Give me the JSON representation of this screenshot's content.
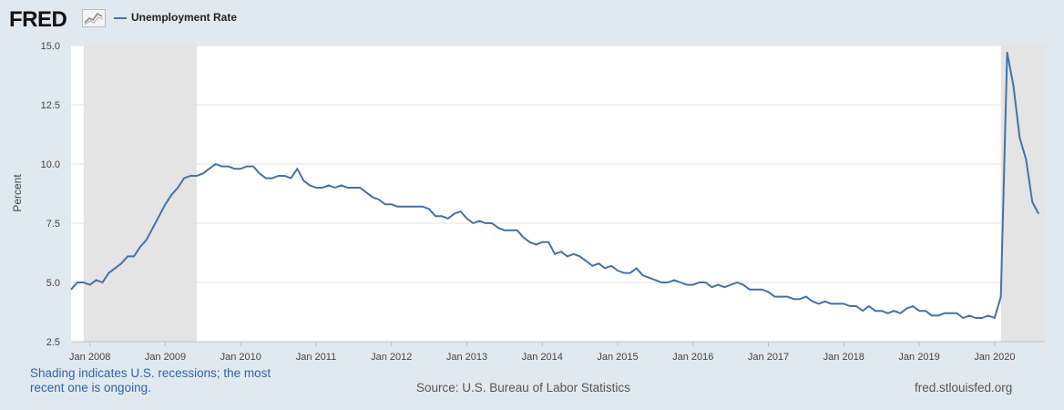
{
  "header": {
    "logo_text": "FRED",
    "logo_icon": "line-graph-icon",
    "legend_label": "Unemployment Rate",
    "series_color": "#4572a7"
  },
  "chart_data": {
    "type": "line",
    "ylabel": "Percent",
    "ylim": [
      2.5,
      15.0
    ],
    "xlim": [
      "2007-10",
      "2020-09"
    ],
    "yticks": [
      2.5,
      5.0,
      7.5,
      10.0,
      12.5,
      15.0
    ],
    "ytick_labels": [
      "2.5",
      "5.0",
      "7.5",
      "10.0",
      "12.5",
      "15.0"
    ],
    "xticks": [
      "2008-01",
      "2009-01",
      "2010-01",
      "2011-01",
      "2012-01",
      "2013-01",
      "2014-01",
      "2015-01",
      "2016-01",
      "2017-01",
      "2018-01",
      "2019-01",
      "2020-01"
    ],
    "xtick_labels": [
      "Jan 2008",
      "Jan 2009",
      "Jan 2010",
      "Jan 2011",
      "Jan 2012",
      "Jan 2013",
      "Jan 2014",
      "Jan 2015",
      "Jan 2016",
      "Jan 2017",
      "Jan 2018",
      "Jan 2019",
      "Jan 2020"
    ],
    "grid": true,
    "recessions": [
      {
        "start": "2007-12",
        "end": "2009-06"
      },
      {
        "start": "2020-02",
        "end": "2020-09"
      }
    ],
    "recession_color": "#e4e4e4",
    "series": [
      {
        "name": "Unemployment Rate",
        "color": "#4572a7",
        "start": "2007-10",
        "values": [
          4.7,
          5.0,
          5.0,
          4.9,
          5.1,
          5.0,
          5.4,
          5.6,
          5.8,
          6.1,
          6.1,
          6.5,
          6.8,
          7.3,
          7.8,
          8.3,
          8.7,
          9.0,
          9.4,
          9.5,
          9.5,
          9.6,
          9.8,
          10.0,
          9.9,
          9.9,
          9.8,
          9.8,
          9.9,
          9.9,
          9.6,
          9.4,
          9.4,
          9.5,
          9.5,
          9.4,
          9.8,
          9.3,
          9.1,
          9.0,
          9.0,
          9.1,
          9.0,
          9.1,
          9.0,
          9.0,
          9.0,
          8.8,
          8.6,
          8.5,
          8.3,
          8.3,
          8.2,
          8.2,
          8.2,
          8.2,
          8.2,
          8.1,
          7.8,
          7.8,
          7.7,
          7.9,
          8.0,
          7.7,
          7.5,
          7.6,
          7.5,
          7.5,
          7.3,
          7.2,
          7.2,
          7.2,
          6.9,
          6.7,
          6.6,
          6.7,
          6.7,
          6.2,
          6.3,
          6.1,
          6.2,
          6.1,
          5.9,
          5.7,
          5.8,
          5.6,
          5.7,
          5.5,
          5.4,
          5.4,
          5.6,
          5.3,
          5.2,
          5.1,
          5.0,
          5.0,
          5.1,
          5.0,
          4.9,
          4.9,
          5.0,
          5.0,
          4.8,
          4.9,
          4.8,
          4.9,
          5.0,
          4.9,
          4.7,
          4.7,
          4.7,
          4.6,
          4.4,
          4.4,
          4.4,
          4.3,
          4.3,
          4.4,
          4.2,
          4.1,
          4.2,
          4.1,
          4.1,
          4.1,
          4.0,
          4.0,
          3.8,
          4.0,
          3.8,
          3.8,
          3.7,
          3.8,
          3.7,
          3.9,
          4.0,
          3.8,
          3.8,
          3.6,
          3.6,
          3.7,
          3.7,
          3.7,
          3.5,
          3.6,
          3.5,
          3.5,
          3.6,
          3.5,
          4.4,
          14.7,
          13.3,
          11.1,
          10.2,
          8.4,
          7.9
        ]
      }
    ]
  },
  "footer": {
    "note": "Shading indicates U.S. recessions; the most recent one is ongoing.",
    "source": "Source: U.S. Bureau of Labor Statistics",
    "site": "fred.stlouisfed.org"
  }
}
